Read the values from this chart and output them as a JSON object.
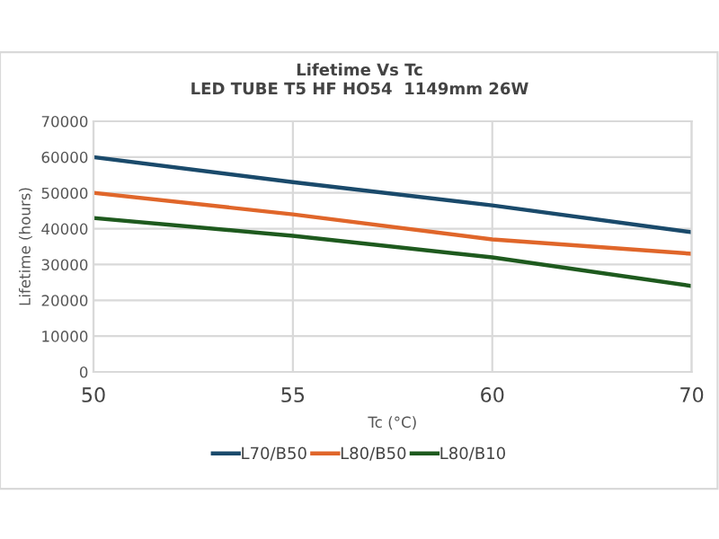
{
  "chart_data": {
    "type": "line",
    "title": "Lifetime Vs Tc",
    "subtitle": "LED TUBE T5 HF HO54  1149mm 26W",
    "xlabel": "Tc (°C)",
    "ylabel": "Lifetime (hours)",
    "categories": [
      "50",
      "55",
      "60",
      "70"
    ],
    "series": [
      {
        "name": "L70/B50",
        "color": "#1a4a6b",
        "values": [
          60000,
          53000,
          46500,
          39000
        ]
      },
      {
        "name": "L80/B50",
        "color": "#e0662a",
        "values": [
          50000,
          44000,
          37000,
          33000
        ]
      },
      {
        "name": "L80/B10",
        "color": "#1e5a1e",
        "values": [
          43000,
          38000,
          32000,
          24000
        ]
      }
    ],
    "ylim": [
      0,
      70000
    ],
    "yticks": [
      0,
      10000,
      20000,
      30000,
      40000,
      50000,
      60000,
      70000
    ],
    "grid": true,
    "legend": "bottom",
    "marker": "none",
    "line_style": "solid"
  }
}
